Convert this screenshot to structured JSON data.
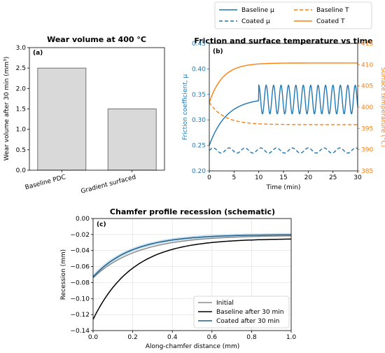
{
  "chart_data": [
    {
      "id": "a",
      "type": "bar",
      "panel_label": "(a)",
      "title": "Wear volume at 400 °C",
      "ylabel": "Wear volume after 30 min (mm³)",
      "categories": [
        "Baseline PDC",
        "Gradient surfaced"
      ],
      "values": [
        2.5,
        1.5
      ],
      "ylim": [
        0,
        3.0
      ],
      "yticks": [
        "0.0",
        "0.5",
        "1.0",
        "1.5",
        "2.0",
        "2.5",
        "3.0"
      ],
      "bar_color": "#d9d9d9",
      "grid": false
    },
    {
      "id": "b",
      "type": "line",
      "panel_label": "(b)",
      "title": "Friction and surface temperature vs time",
      "xlabel": "Time (min)",
      "ylabel_left": "Friction coefficient, μ",
      "ylabel_right": "Surface temperature (°C)",
      "xlim": [
        0,
        30
      ],
      "ylim_left": [
        0.2,
        0.45
      ],
      "ylim_right": [
        385,
        415
      ],
      "xticks": [
        "0",
        "5",
        "10",
        "15",
        "20",
        "25",
        "30"
      ],
      "yticks_left": [
        "0.20",
        "0.25",
        "0.30",
        "0.35",
        "0.40",
        "0.45"
      ],
      "yticks_right": [
        "385",
        "390",
        "395",
        "400",
        "405",
        "410",
        "415"
      ],
      "colors": {
        "blue": "#1f77b4",
        "orange": "#ff7f0e"
      },
      "legend": [
        {
          "label": "Baseline μ",
          "color": "#1f77b4",
          "dash": false
        },
        {
          "label": "Coated μ",
          "color": "#1f77b4",
          "dash": true
        },
        {
          "label": "Baseline T",
          "color": "#ff7f0e",
          "dash": true
        },
        {
          "label": "Coated T",
          "color": "#ff7f0e",
          "dash": false
        }
      ],
      "series": [
        {
          "name": "Baseline μ",
          "axis": "left",
          "description": "rises 0.25→0.34 over 0–10 min, then oscillates 0.31–0.37 (≈1.5 min period) to 30 min"
        },
        {
          "name": "Coated μ",
          "axis": "left",
          "description": "oscillates about 0.24 (0.235–0.245)"
        },
        {
          "name": "Baseline T",
          "axis": "right",
          "description": "decays from 401 °C to ≈396 °C"
        },
        {
          "name": "Coated T",
          "axis": "right",
          "description": "rises from 401 °C to ≈410 °C"
        }
      ]
    },
    {
      "id": "c",
      "type": "line",
      "panel_label": "(c)",
      "title": "Chamfer profile recession (schematic)",
      "xlabel": "Along-chamfer distance (mm)",
      "ylabel": "Recession (mm)",
      "xlim": [
        0.0,
        1.0
      ],
      "ylim": [
        -0.14,
        0.0
      ],
      "xticks": [
        "0.0",
        "0.2",
        "0.4",
        "0.6",
        "0.8",
        "1.0"
      ],
      "yticks": [
        "0.00",
        "−0.02",
        "−0.04",
        "−0.06",
        "−0.08",
        "−0.10",
        "−0.12",
        "−0.14"
      ],
      "grid": true,
      "legend": [
        {
          "label": "Initial",
          "color": "#8c8c8c"
        },
        {
          "label": "Baseline after 30 min",
          "color": "#000000"
        },
        {
          "label": "Coated after 30 min",
          "color": "#1f5f8b"
        }
      ],
      "series": [
        {
          "name": "Initial",
          "x": [
            0.0,
            0.2,
            0.4,
            0.6,
            0.8,
            1.0
          ],
          "y": [
            -0.074,
            -0.043,
            -0.031,
            -0.026,
            -0.024,
            -0.023
          ]
        },
        {
          "name": "Baseline after 30 min",
          "x": [
            0.0,
            0.2,
            0.4,
            0.6,
            0.8,
            1.0
          ],
          "y": [
            -0.126,
            -0.062,
            -0.04,
            -0.032,
            -0.028,
            -0.027
          ]
        },
        {
          "name": "Coated after 30 min",
          "x": [
            0.0,
            0.2,
            0.4,
            0.6,
            0.8,
            1.0
          ],
          "y": [
            -0.073,
            -0.039,
            -0.028,
            -0.024,
            -0.022,
            -0.022
          ]
        }
      ]
    }
  ]
}
